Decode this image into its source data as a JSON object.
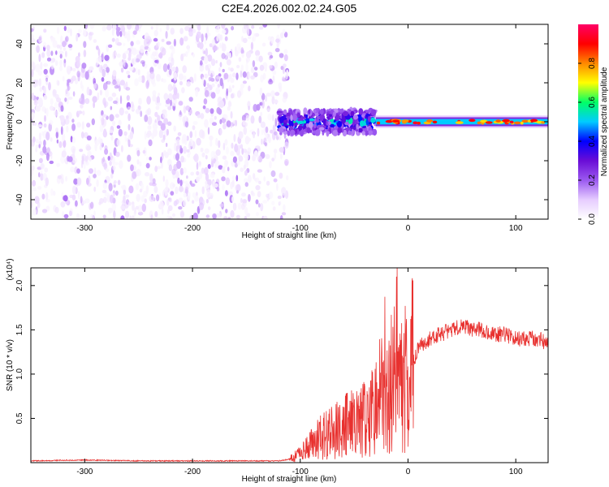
{
  "figure": {
    "title": "C2E4.2026.002.02.24.G05"
  },
  "chart_data": [
    {
      "type": "heatmap",
      "title": "C2E4.2026.002.02.24.G05",
      "xlabel": "Height of straight line (km)",
      "ylabel": "Frequency (Hz)",
      "xlim": [
        -350,
        130
      ],
      "ylim": [
        -50,
        50
      ],
      "x_ticks": [
        -300,
        -200,
        -100,
        0,
        100
      ],
      "x_tick_labels": [
        "-300",
        "-200",
        "-100",
        "0",
        "100"
      ],
      "y_ticks": [
        -40,
        -20,
        0,
        20,
        40
      ],
      "y_tick_labels": [
        "-40",
        "-20",
        "0",
        "20",
        "40"
      ],
      "colorbar": {
        "label": "Normalized spectral amplitude",
        "range": [
          0,
          1
        ],
        "ticks": [
          0.0,
          0.2,
          0.4,
          0.6,
          0.8
        ],
        "tick_labels": [
          "0.0",
          "0.2",
          "0.4",
          "0.6",
          "0.8"
        ],
        "colormap": [
          "#ffffff",
          "#e6ccff",
          "#9b59f0",
          "#6a0dd6",
          "#0000ff",
          "#00ccff",
          "#00ff66",
          "#ffff00",
          "#ff8800",
          "#ff0000",
          "#ff0066"
        ]
      },
      "regions": [
        {
          "x": [
            -350,
            -112
          ],
          "freq": [
            -50,
            50
          ],
          "amplitude": "0.0-0.2 noise"
        },
        {
          "x": [
            -120,
            -30
          ],
          "freq": [
            -6,
            6
          ],
          "amplitude": "0.2-0.6"
        },
        {
          "x": [
            -30,
            130
          ],
          "freq": [
            -3,
            3
          ],
          "amplitude": "0.4-0.9"
        }
      ]
    },
    {
      "type": "line",
      "xlabel": "Height of straight line (km)",
      "ylabel": "SNR (10 * v/v)",
      "y_multiplier": "(x10⁴)",
      "xlim": [
        -350,
        130
      ],
      "ylim": [
        0,
        2.2
      ],
      "x_ticks": [
        -300,
        -200,
        -100,
        0,
        100
      ],
      "x_tick_labels": [
        "-300",
        "-200",
        "-100",
        "0",
        "100"
      ],
      "y_ticks": [
        0.5,
        1.0,
        1.5,
        2.0
      ],
      "y_tick_labels": [
        "0.5",
        "1.0",
        "1.5",
        "2.0"
      ],
      "color": "#e8312f",
      "series": [
        {
          "x": [
            -350,
            -300,
            -250,
            -200,
            -150,
            -120,
            -110,
            -100,
            -90,
            -80,
            -70,
            -60,
            -50,
            -40,
            -30,
            -25,
            -20,
            -15,
            -12,
            -10,
            -5,
            0,
            10,
            20,
            30,
            40,
            50,
            60,
            70,
            80,
            90,
            100,
            110,
            120,
            130
          ],
          "values": [
            0.02,
            0.03,
            0.02,
            0.02,
            0.02,
            0.02,
            0.04,
            0.1,
            0.2,
            0.3,
            0.35,
            0.4,
            0.45,
            0.5,
            0.6,
            0.8,
            0.7,
            0.9,
            1.0,
            0.7,
            0.9,
            1.0,
            1.3,
            1.4,
            1.45,
            1.5,
            1.55,
            1.5,
            1.5,
            1.45,
            1.45,
            1.4,
            1.4,
            1.4,
            1.35
          ]
        }
      ]
    }
  ]
}
